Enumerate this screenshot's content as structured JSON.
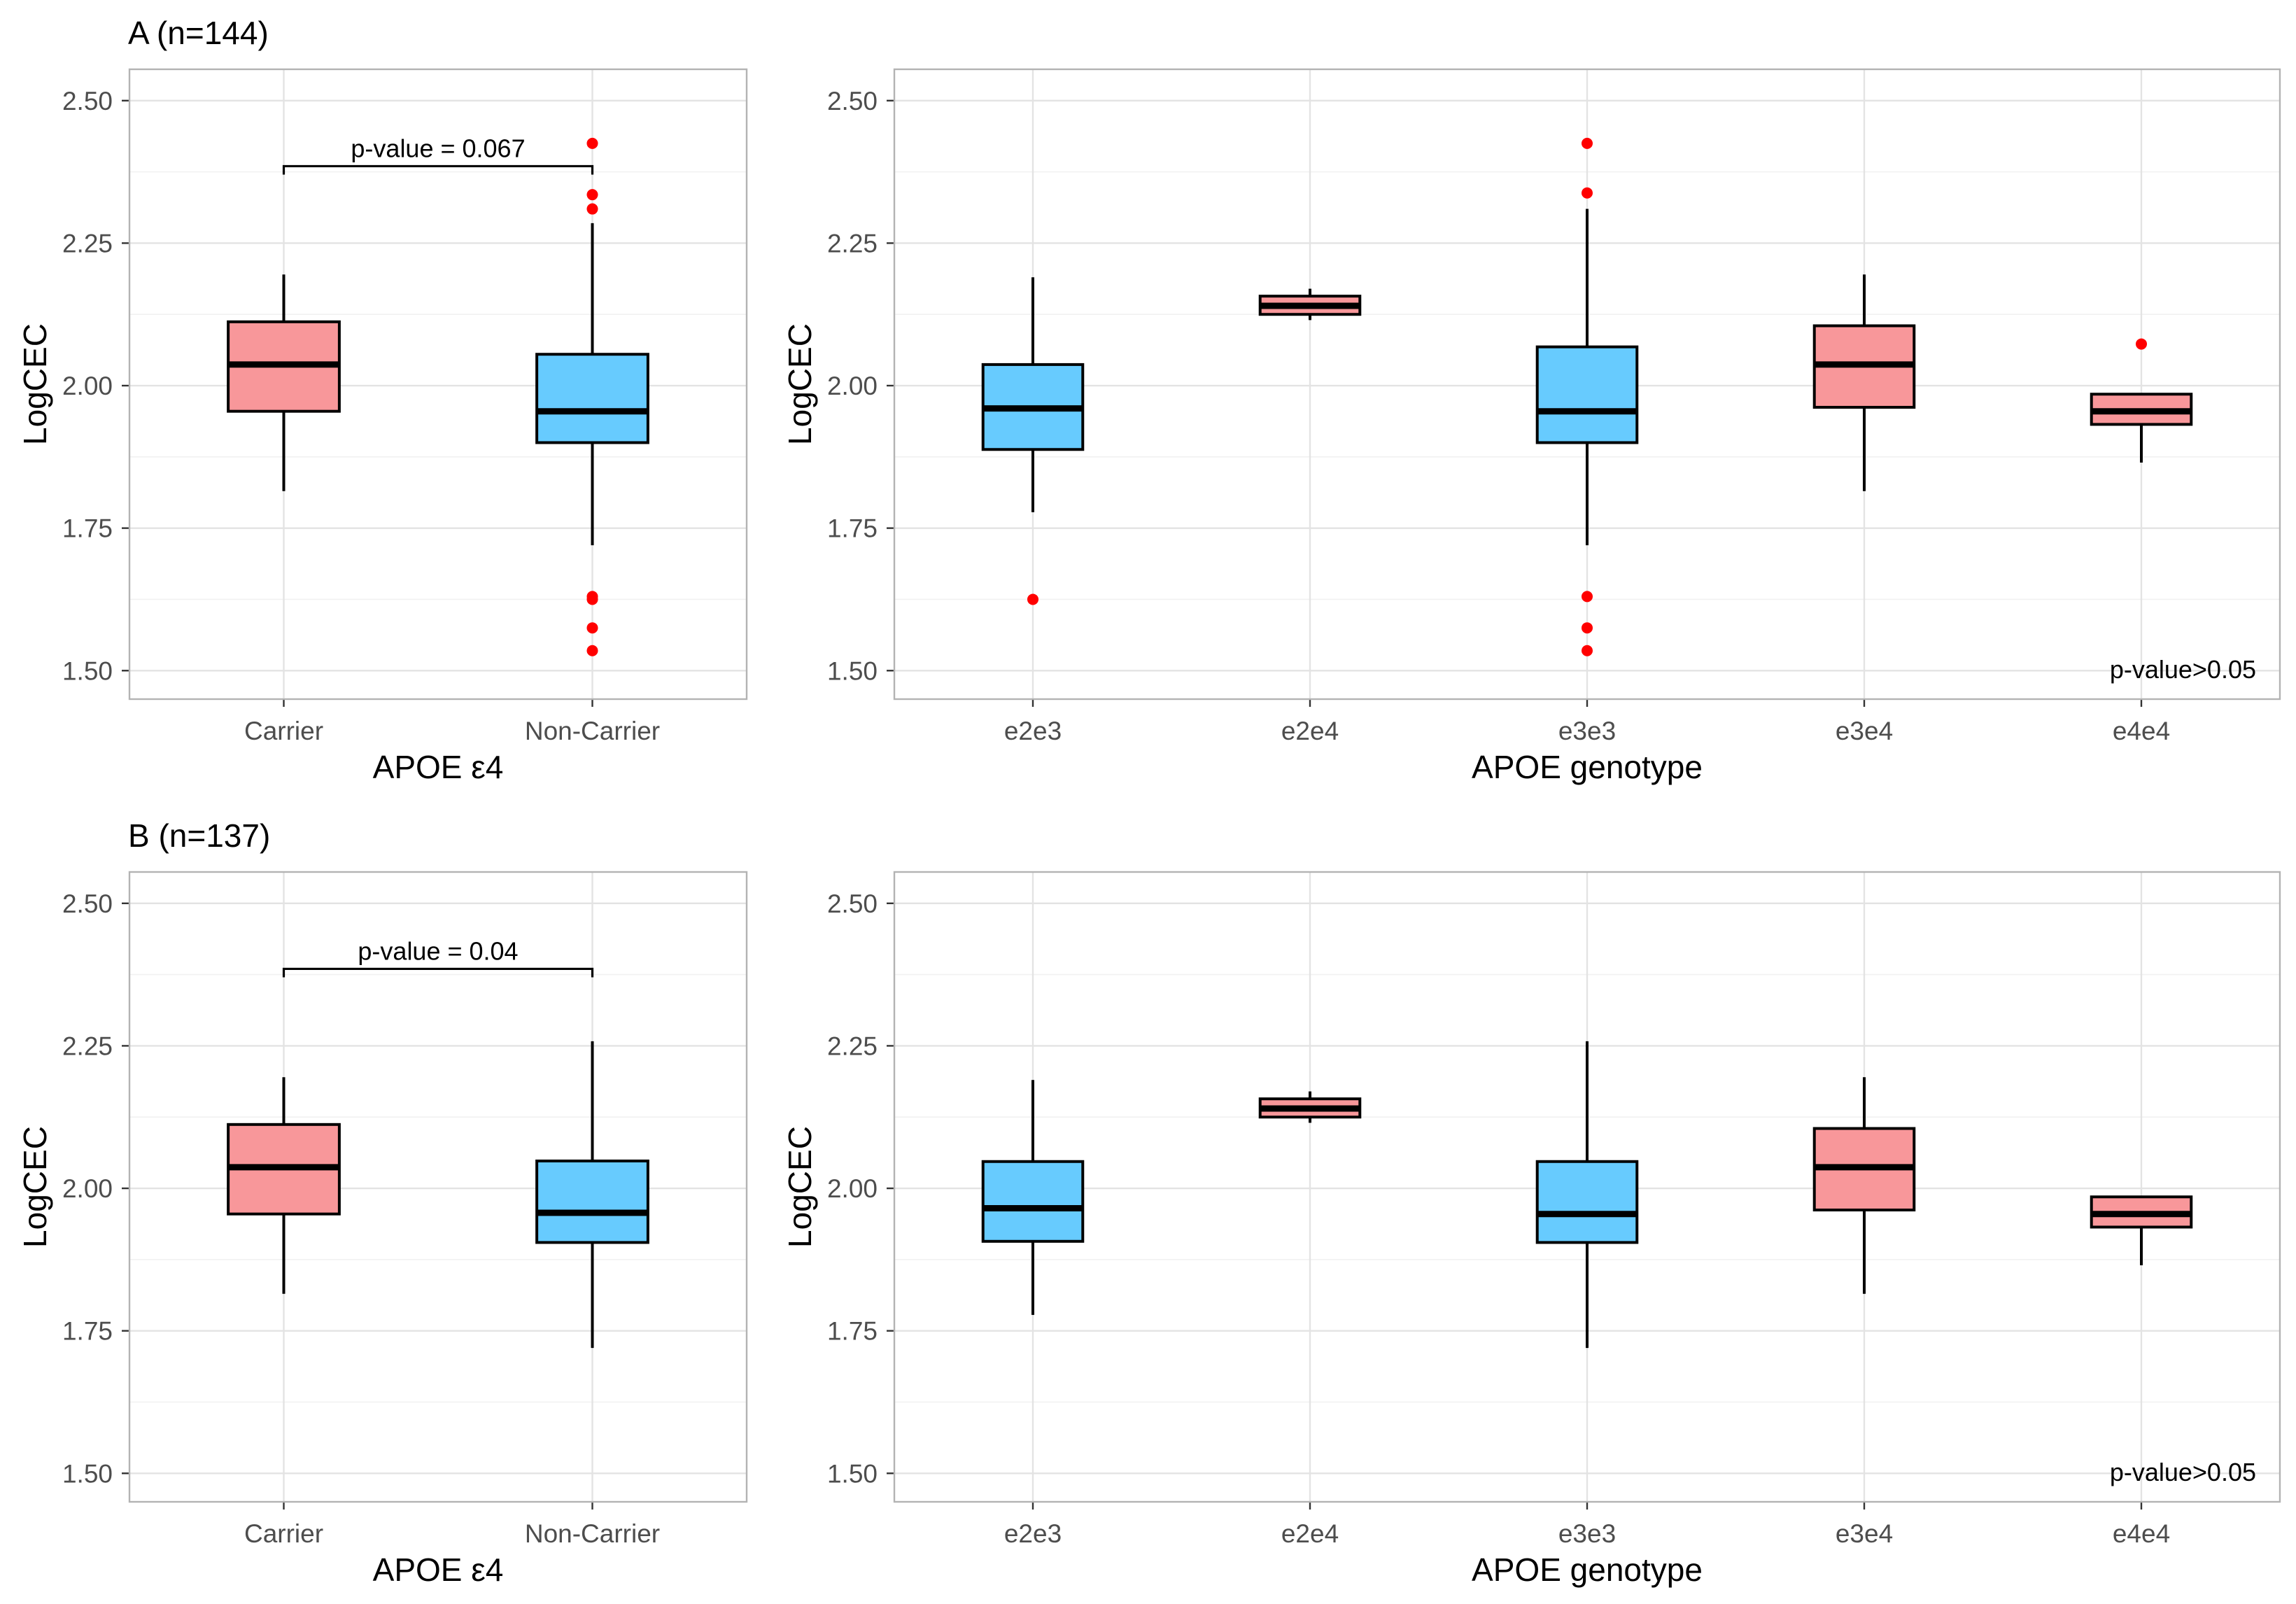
{
  "colors": {
    "carrier": "#f8979a",
    "noncarrier": "#67cbfe",
    "outlier": "#ff0000"
  },
  "chart_data": [
    {
      "type": "box",
      "title": "A (n=144)",
      "xlabel": "APOE ε4",
      "ylabel": "LogCEC",
      "ylim": [
        1.45,
        2.555
      ],
      "yticks": [
        "1.50",
        "1.75",
        "2.00",
        "2.25",
        "2.50"
      ],
      "categories": [
        {
          "label": "Carrier",
          "group": "carrier",
          "q1": 1.955,
          "median": 2.037,
          "q3": 2.112,
          "whisker_low": 1.815,
          "whisker_high": 2.195,
          "outliers": []
        },
        {
          "label": "Non-Carrier",
          "group": "noncarrier",
          "q1": 1.9,
          "median": 1.955,
          "q3": 2.055,
          "whisker_low": 1.72,
          "whisker_high": 2.285,
          "outliers": [
            2.425,
            2.335,
            2.31,
            1.63,
            1.625,
            1.575,
            1.535
          ]
        }
      ],
      "comparison": {
        "label": "p-value = 0.067",
        "y": 2.385
      }
    },
    {
      "type": "box",
      "title": "",
      "xlabel": "APOE genotype",
      "ylabel": "LogCEC",
      "ylim": [
        1.45,
        2.555
      ],
      "yticks": [
        "1.50",
        "1.75",
        "2.00",
        "2.25",
        "2.50"
      ],
      "categories": [
        {
          "label": "e2e3",
          "group": "noncarrier",
          "q1": 1.888,
          "median": 1.96,
          "q3": 2.037,
          "whisker_low": 1.778,
          "whisker_high": 2.19,
          "outliers": [
            1.625
          ]
        },
        {
          "label": "e2e4",
          "group": "carrier",
          "q1": 2.125,
          "median": 2.14,
          "q3": 2.157,
          "whisker_low": 2.115,
          "whisker_high": 2.17,
          "outliers": []
        },
        {
          "label": "e3e3",
          "group": "noncarrier",
          "q1": 1.9,
          "median": 1.955,
          "q3": 2.068,
          "whisker_low": 1.72,
          "whisker_high": 2.31,
          "outliers": [
            2.425,
            2.338,
            1.63,
            1.575,
            1.535
          ]
        },
        {
          "label": "e3e4",
          "group": "carrier",
          "q1": 1.962,
          "median": 2.037,
          "q3": 2.105,
          "whisker_low": 1.815,
          "whisker_high": 2.195,
          "outliers": []
        },
        {
          "label": "e4e4",
          "group": "carrier",
          "q1": 1.932,
          "median": 1.955,
          "q3": 1.985,
          "whisker_low": 1.865,
          "whisker_high": 1.985,
          "outliers": [
            2.073
          ]
        }
      ],
      "annotation": "p-value>0.05"
    },
    {
      "type": "box",
      "title": "B (n=137)",
      "xlabel": "APOE ε4",
      "ylabel": "LogCEC",
      "ylim": [
        1.45,
        2.555
      ],
      "yticks": [
        "1.50",
        "1.75",
        "2.00",
        "2.25",
        "2.50"
      ],
      "categories": [
        {
          "label": "Carrier",
          "group": "carrier",
          "q1": 1.955,
          "median": 2.037,
          "q3": 2.112,
          "whisker_low": 1.815,
          "whisker_high": 2.195,
          "outliers": []
        },
        {
          "label": "Non-Carrier",
          "group": "noncarrier",
          "q1": 1.905,
          "median": 1.957,
          "q3": 2.048,
          "whisker_low": 1.72,
          "whisker_high": 2.258,
          "outliers": []
        }
      ],
      "comparison": {
        "label": "p-value = 0.04",
        "y": 2.385
      }
    },
    {
      "type": "box",
      "title": "",
      "xlabel": "APOE genotype",
      "ylabel": "LogCEC",
      "ylim": [
        1.45,
        2.555
      ],
      "yticks": [
        "1.50",
        "1.75",
        "2.00",
        "2.25",
        "2.50"
      ],
      "categories": [
        {
          "label": "e2e3",
          "group": "noncarrier",
          "q1": 1.907,
          "median": 1.965,
          "q3": 2.047,
          "whisker_low": 1.778,
          "whisker_high": 2.19,
          "outliers": []
        },
        {
          "label": "e2e4",
          "group": "carrier",
          "q1": 2.125,
          "median": 2.14,
          "q3": 2.157,
          "whisker_low": 2.115,
          "whisker_high": 2.17,
          "outliers": []
        },
        {
          "label": "e3e3",
          "group": "noncarrier",
          "q1": 1.905,
          "median": 1.955,
          "q3": 2.047,
          "whisker_low": 1.72,
          "whisker_high": 2.258,
          "outliers": []
        },
        {
          "label": "e3e4",
          "group": "carrier",
          "q1": 1.962,
          "median": 2.037,
          "q3": 2.105,
          "whisker_low": 1.815,
          "whisker_high": 2.195,
          "outliers": []
        },
        {
          "label": "e4e4",
          "group": "carrier",
          "q1": 1.932,
          "median": 1.955,
          "q3": 1.985,
          "whisker_low": 1.865,
          "whisker_high": 1.985,
          "outliers": []
        }
      ],
      "annotation": "p-value>0.05"
    }
  ]
}
